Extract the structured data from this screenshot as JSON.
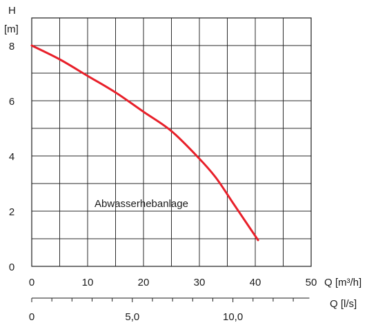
{
  "chart_data": {
    "type": "line",
    "title": "",
    "ylabel": "H",
    "yunit": "[m]",
    "xlabel": "Q [m³/h]",
    "x2label": "Q [l/s]",
    "xlim": [
      0,
      50
    ],
    "ylim": [
      0,
      9
    ],
    "x_ticks": [
      "0",
      "10",
      "20",
      "30",
      "40",
      "50"
    ],
    "y_ticks": [
      "0",
      "2",
      "4",
      "6",
      "8"
    ],
    "x2_ticks": [
      "0",
      "5,0",
      "10,0"
    ],
    "grid": true,
    "series": [
      {
        "name": "Abwasserhebanlage",
        "color": "#e8202a",
        "x": [
          0,
          5,
          10,
          15,
          20,
          25,
          30,
          33,
          36,
          38,
          40.5
        ],
        "y": [
          8.0,
          7.5,
          6.9,
          6.3,
          5.6,
          4.9,
          3.9,
          3.2,
          2.3,
          1.7,
          0.95
        ]
      }
    ]
  }
}
